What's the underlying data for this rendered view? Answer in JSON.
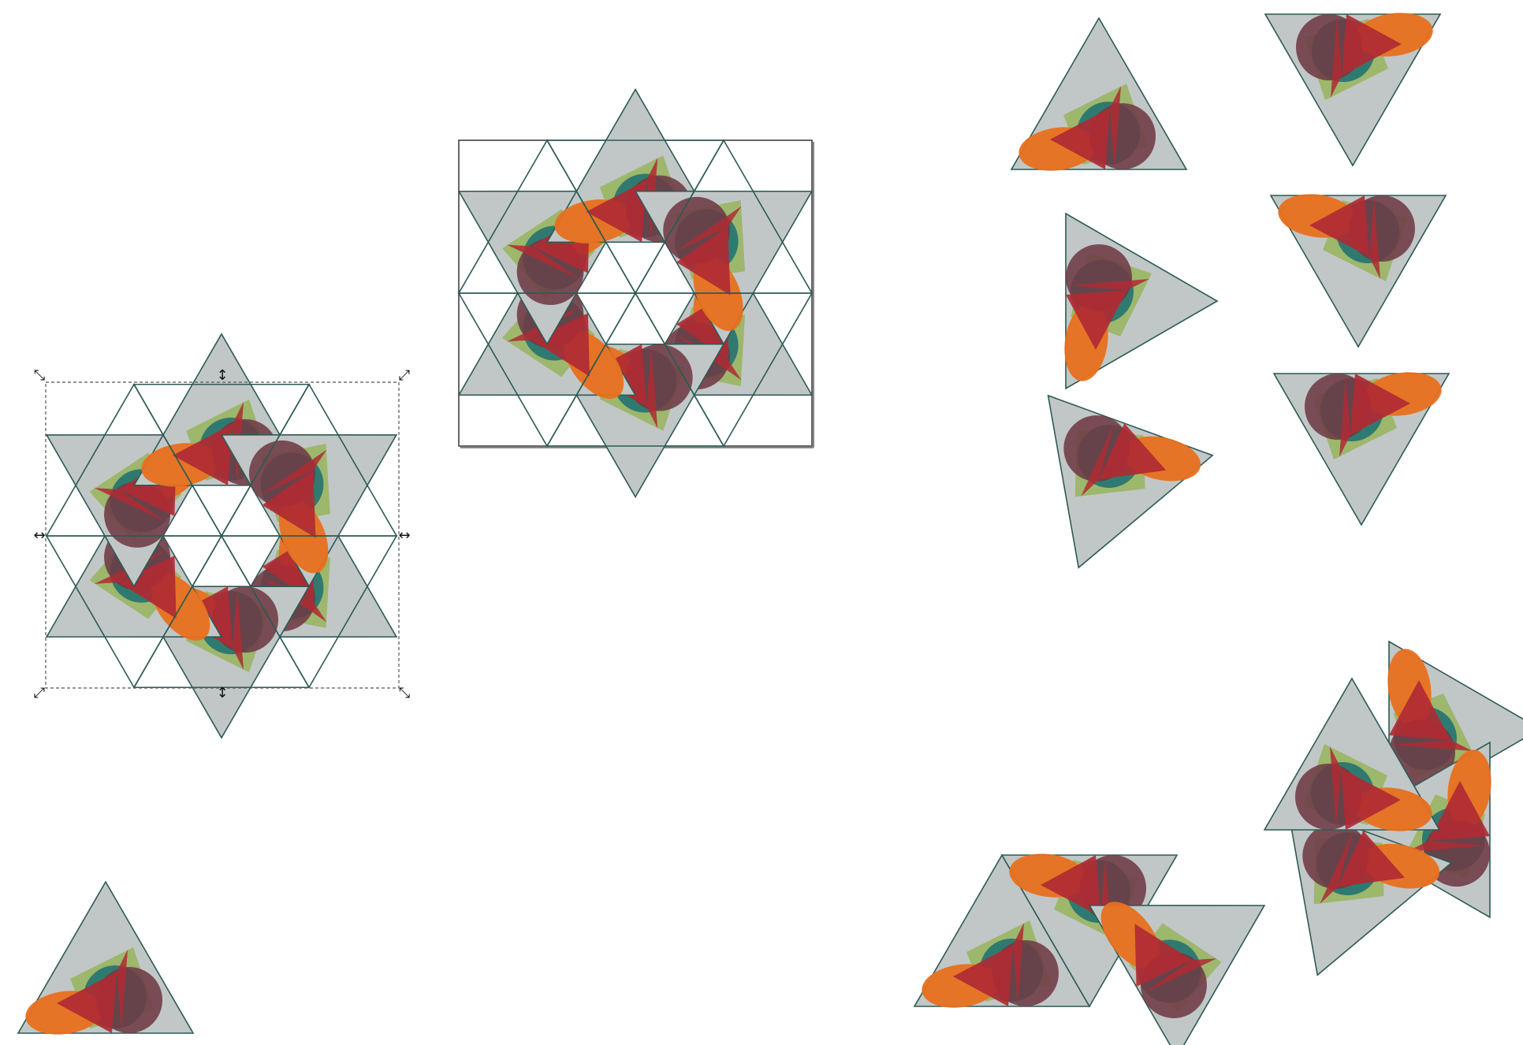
{
  "document": {
    "kind": "kaleidoscope tiling drawing"
  },
  "colors": {
    "canvas": "#ffffff",
    "triangle_fill": "#c1c7c7",
    "triangle_stroke": "#2d5a55",
    "teal": "#2f7a70",
    "green": "#8fb24a",
    "orange": "#e8701e",
    "red": "#b02a33",
    "maroon": "#6e3b45",
    "frame": "#333333",
    "handle": "#111111"
  },
  "icons": {
    "corner_handle": "diagonal-double-arrow",
    "edge_handle": "straight-double-arrow"
  },
  "pieces": {
    "groups": [
      "selected-hexagon",
      "framed-hexagon",
      "loose-triangles",
      "triangle-strip",
      "rhombus"
    ],
    "loose_triangle_count": 7
  }
}
